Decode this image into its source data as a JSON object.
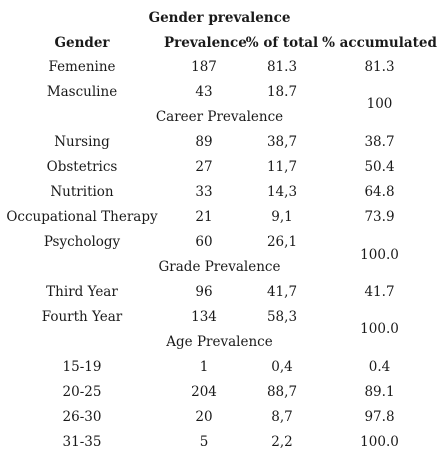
{
  "title": "Gender prevalence",
  "headers": [
    "Gender",
    "Prevalence",
    "% of total",
    "% accumulated"
  ],
  "gender": {
    "rows": [
      {
        "label": "Femenine",
        "prevalence": "187",
        "pct": "81.3",
        "acc": "81.3"
      },
      {
        "label": "Masculine",
        "prevalence": "43",
        "pct": "18.7"
      }
    ],
    "merged_acc": "100"
  },
  "career": {
    "title": "Career Prevalence",
    "rows": [
      {
        "label": "Nursing",
        "prevalence": "89",
        "pct": "38,7",
        "acc": "38.7"
      },
      {
        "label": "Obstetrics",
        "prevalence": "27",
        "pct": "11,7",
        "acc": "50.4"
      },
      {
        "label": "Nutrition",
        "prevalence": "33",
        "pct": "14,3",
        "acc": "64.8"
      },
      {
        "label": "Occupational Therapy",
        "prevalence": "21",
        "pct": "9,1",
        "acc": "73.9"
      },
      {
        "label": "Psychology",
        "prevalence": "60",
        "pct": "26,1"
      }
    ],
    "merged_acc": "100.0"
  },
  "grade": {
    "title": "Grade Prevalence",
    "rows": [
      {
        "label": "Third Year",
        "prevalence": "96",
        "pct": "41,7",
        "acc": "41.7"
      },
      {
        "label": "Fourth Year",
        "prevalence": "134",
        "pct": "58,3"
      }
    ],
    "merged_acc": "100.0"
  },
  "age": {
    "title": "Age Prevalence",
    "rows": [
      {
        "label": "15-19",
        "prevalence": "1",
        "pct": "0,4",
        "acc": "0.4"
      },
      {
        "label": "20-25",
        "prevalence": "204",
        "pct": "88,7",
        "acc": "89.1"
      },
      {
        "label": "26-30",
        "prevalence": "20",
        "pct": "8,7",
        "acc": "97.8"
      },
      {
        "label": "31-35",
        "prevalence": "5",
        "pct": "2,2",
        "acc": "100.0"
      }
    ]
  }
}
